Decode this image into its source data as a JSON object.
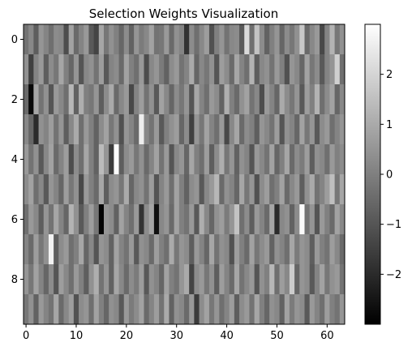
{
  "chart_data": {
    "type": "heatmap",
    "title": "Selection Weights Visualization",
    "xlabel": "",
    "ylabel": "",
    "rows": 10,
    "cols": 64,
    "xticks": [
      0,
      10,
      20,
      30,
      40,
      50,
      60
    ],
    "yticks": [
      0,
      2,
      4,
      6,
      8
    ],
    "colormap": "gray",
    "vmin": -3.0,
    "vmax": 3.0,
    "colorbar_ticks": [
      2,
      1,
      0,
      -1,
      -2
    ],
    "colorbar_tick_labels": [
      "2",
      "1",
      "0",
      "−1",
      "−2"
    ],
    "values": [
      [
        -0.3,
        0.2,
        -0.8,
        0.5,
        0.1,
        -0.4,
        0.3,
        0.2,
        -1.2,
        0.8,
        -0.5,
        0.1,
        0.6,
        -0.9,
        -1.4,
        0.9,
        -0.2,
        0.4,
        0.0,
        -0.6,
        0.3,
        -0.7,
        0.5,
        -0.1,
        0.2,
        0.8,
        -0.3,
        -0.2,
        0.6,
        -0.5,
        0.4,
        0.1,
        -1.8,
        0.3,
        -0.4,
        0.2,
        0.7,
        -1.1,
        0.0,
        0.5,
        -0.3,
        0.2,
        0.3,
        -0.9,
        2.1,
        -0.4,
        1.6,
        0.3,
        -0.7,
        0.0,
        0.5,
        -0.6,
        0.3,
        -0.2,
        0.4,
        1.7,
        -0.5,
        0.2,
        0.6,
        -1.3,
        0.1,
        1.2,
        -0.2,
        0.4
      ],
      [
        0.4,
        -1.5,
        0.1,
        0.6,
        -0.8,
        0.3,
        -0.2,
        0.9,
        0.0,
        -0.6,
        0.5,
        -1.0,
        0.2,
        0.4,
        -0.3,
        0.7,
        -0.9,
        0.1,
        0.3,
        -0.5,
        0.8,
        0.0,
        -0.4,
        0.6,
        -1.2,
        0.2,
        0.5,
        -0.1,
        -0.7,
        0.3,
        0.6,
        -0.3,
        0.1,
        1.0,
        -0.6,
        0.2,
        -0.2,
        0.4,
        -1.0,
        0.7,
        0.3,
        -0.5,
        0.9,
        0.1,
        -0.4,
        1.2,
        -0.8,
        0.2,
        0.4,
        -0.3,
        0.6,
        0.0,
        -1.1,
        0.5,
        0.2,
        -0.6,
        0.8,
        -0.2,
        0.3,
        -0.9,
        0.1,
        0.5,
        1.9,
        -0.4
      ],
      [
        -0.5,
        -2.8,
        0.9,
        -0.3,
        0.4,
        -1.0,
        0.6,
        0.2,
        -0.4,
        1.3,
        -0.7,
        1.1,
        0.0,
        -0.2,
        0.5,
        -0.8,
        0.3,
        1.0,
        -0.5,
        0.2,
        0.6,
        -1.3,
        0.1,
        0.7,
        -0.3,
        0.4,
        -0.9,
        0.8,
        0.2,
        -0.6,
        0.3,
        -0.2,
        0.5,
        -1.0,
        0.9,
        0.1,
        -0.4,
        0.6,
        0.3,
        -0.7,
        1.1,
        0.0,
        -0.5,
        0.4,
        0.8,
        -0.3,
        0.2,
        -1.2,
        0.6,
        0.1,
        -0.6,
        1.0,
        0.3,
        -0.2,
        0.5,
        -0.9,
        0.7,
        0.0,
        1.2,
        -0.4,
        0.3,
        0.8,
        -0.6,
        0.2
      ],
      [
        0.2,
        -0.6,
        -2.0,
        0.4,
        0.1,
        0.7,
        -0.3,
        0.5,
        -0.8,
        0.2,
        1.0,
        -0.4,
        0.6,
        0.0,
        -0.7,
        0.3,
        0.8,
        -0.2,
        0.4,
        -1.1,
        0.5,
        0.1,
        -0.5,
        2.6,
        0.2,
        -0.3,
        0.6,
        -0.9,
        0.0,
        0.4,
        0.7,
        -0.6,
        0.3,
        -1.5,
        0.5,
        -0.2,
        0.8,
        0.1,
        -0.4,
        0.6,
        -1.3,
        0.2,
        0.9,
        -0.5,
        0.3,
        0.0,
        -0.8,
        0.5,
        0.2,
        -0.3,
        0.7,
        -1.0,
        0.4,
        0.1,
        -0.6,
        0.8,
        -0.2,
        0.5,
        -0.9,
        0.3,
        0.6,
        -0.4,
        0.1,
        0.5
      ],
      [
        0.6,
        -0.3,
        0.4,
        -0.9,
        0.2,
        0.8,
        -0.5,
        0.1,
        0.7,
        -1.2,
        0.3,
        -0.4,
        0.9,
        0.0,
        -0.7,
        1.4,
        0.5,
        -1.6,
        2.9,
        -0.8,
        0.3,
        0.6,
        -0.2,
        0.4,
        -0.5,
        0.1,
        0.8,
        -0.3,
        0.6,
        -1.0,
        0.2,
        0.5,
        -0.6,
        0.9,
        0.0,
        -0.4,
        0.7,
        -0.8,
        0.3,
        1.1,
        -0.2,
        0.5,
        -0.7,
        0.4,
        0.1,
        -1.0,
        0.6,
        0.2,
        -0.3,
        0.8,
        -0.6,
        0.0,
        0.9,
        -0.5,
        0.3,
        -0.1,
        0.7,
        -0.8,
        0.4,
        0.2,
        -0.4,
        0.6,
        0.0,
        0.3
      ],
      [
        0.3,
        0.8,
        -0.4,
        0.2,
        -0.9,
        0.5,
        0.1,
        -0.6,
        0.7,
        -0.2,
        0.4,
        -1.3,
        0.6,
        0.0,
        -0.5,
        0.9,
        -0.8,
        0.3,
        0.5,
        -0.2,
        1.0,
        -0.6,
        0.2,
        0.4,
        -0.3,
        0.7,
        -1.0,
        0.1,
        0.6,
        -0.4,
        0.8,
        0.0,
        -0.7,
        0.3,
        0.5,
        -0.9,
        0.2,
        0.6,
        1.3,
        -0.5,
        0.4,
        0.1,
        -0.6,
        0.9,
        -0.2,
        0.5,
        -1.1,
        0.3,
        0.7,
        -0.4,
        0.0,
        0.8,
        -0.5,
        0.2,
        0.6,
        -0.8,
        0.4,
        1.0,
        -0.3,
        0.1,
        0.7,
        1.5,
        -0.2,
        0.9
      ],
      [
        -0.4,
        0.6,
        0.2,
        -0.8,
        0.5,
        -0.3,
        0.9,
        0.1,
        -0.6,
        1.2,
        0.4,
        -0.9,
        0.0,
        0.7,
        -0.2,
        -2.9,
        0.5,
        0.3,
        -0.7,
        0.8,
        0.1,
        -0.4,
        0.6,
        -1.8,
        0.3,
        0.9,
        -2.6,
        0.2,
        0.5,
        -0.5,
        0.8,
        0.0,
        -0.3,
        0.6,
        -0.9,
        1.1,
        0.2,
        -0.6,
        0.4,
        0.7,
        -0.1,
        0.5,
        1.6,
        -0.4,
        0.3,
        -0.8,
        0.6,
        0.1,
        -0.5,
        0.9,
        -2.0,
        0.2,
        0.4,
        -0.7,
        0.3,
        2.9,
        -0.3,
        0.5,
        -1.0,
        0.6,
        0.0,
        -0.5,
        0.8,
        0.2
      ],
      [
        0.1,
        -0.5,
        0.7,
        -0.2,
        0.4,
        2.7,
        -0.8,
        0.3,
        0.6,
        -0.4,
        0.0,
        0.9,
        -0.6,
        0.2,
        -1.0,
        0.5,
        0.3,
        -0.7,
        0.8,
        0.1,
        -0.3,
        0.6,
        -0.9,
        0.4,
        0.2,
        -0.5,
        0.7,
        0.0,
        -0.4,
        1.0,
        -0.2,
        0.5,
        0.3,
        -0.8,
        0.6,
        0.1,
        -0.6,
        0.9,
        -0.3,
        0.4,
        0.2,
        -1.1,
        0.7,
        0.0,
        -0.5,
        0.8,
        -0.2,
        0.3,
        0.6,
        -0.7,
        0.4,
        0.1,
        -0.4,
        0.9,
        -0.1,
        0.5,
        0.3,
        -0.8,
        0.6,
        0.0,
        -0.3,
        0.7,
        0.2,
        -0.5
      ],
      [
        0.5,
        -0.2,
        0.8,
        0.1,
        -0.6,
        0.3,
        -1.0,
        0.7,
        0.2,
        -0.4,
        0.6,
        0.0,
        -0.8,
        0.4,
        1.1,
        -0.3,
        0.5,
        -0.7,
        0.9,
        0.2,
        -0.5,
        0.3,
        -0.1,
        0.7,
        -0.9,
        0.4,
        0.1,
        -0.6,
        0.8,
        0.0,
        -0.3,
        0.5,
        1.0,
        -1.4,
        0.3,
        0.6,
        -0.2,
        0.4,
        -0.8,
        0.7,
        0.1,
        -0.5,
        0.9,
        -0.3,
        0.2,
        0.6,
        -1.0,
        0.4,
        0.0,
        1.3,
        -0.4,
        0.7,
        0.2,
        1.8,
        -0.6,
        0.5,
        0.3,
        -0.9,
        0.1,
        0.8,
        -0.2,
        0.4,
        0.6,
        -0.3
      ],
      [
        -0.2,
        0.4,
        -0.7,
        0.6,
        0.1,
        -0.3,
        0.9,
        -0.5,
        0.2,
        0.7,
        -1.1,
        0.3,
        0.5,
        -0.4,
        0.8,
        0.0,
        -0.6,
        0.4,
        0.2,
        -0.9,
        0.6,
        -0.1,
        0.3,
        0.8,
        -0.5,
        0.1,
        0.7,
        -0.3,
        1.0,
        -0.7,
        0.4,
        0.2,
        -0.5,
        0.6,
        -1.6,
        0.3,
        0.8,
        -0.2,
        0.5,
        -0.4,
        0.1,
        0.7,
        -0.8,
        0.3,
        0.6,
        -0.3,
        0.9,
        0.0,
        -0.6,
        0.4,
        0.2,
        -0.7,
        0.8,
        -0.1,
        0.5,
        0.3,
        -0.9,
        0.6,
        0.1,
        -0.4,
        0.7,
        0.0,
        -0.3,
        0.5
      ]
    ]
  }
}
